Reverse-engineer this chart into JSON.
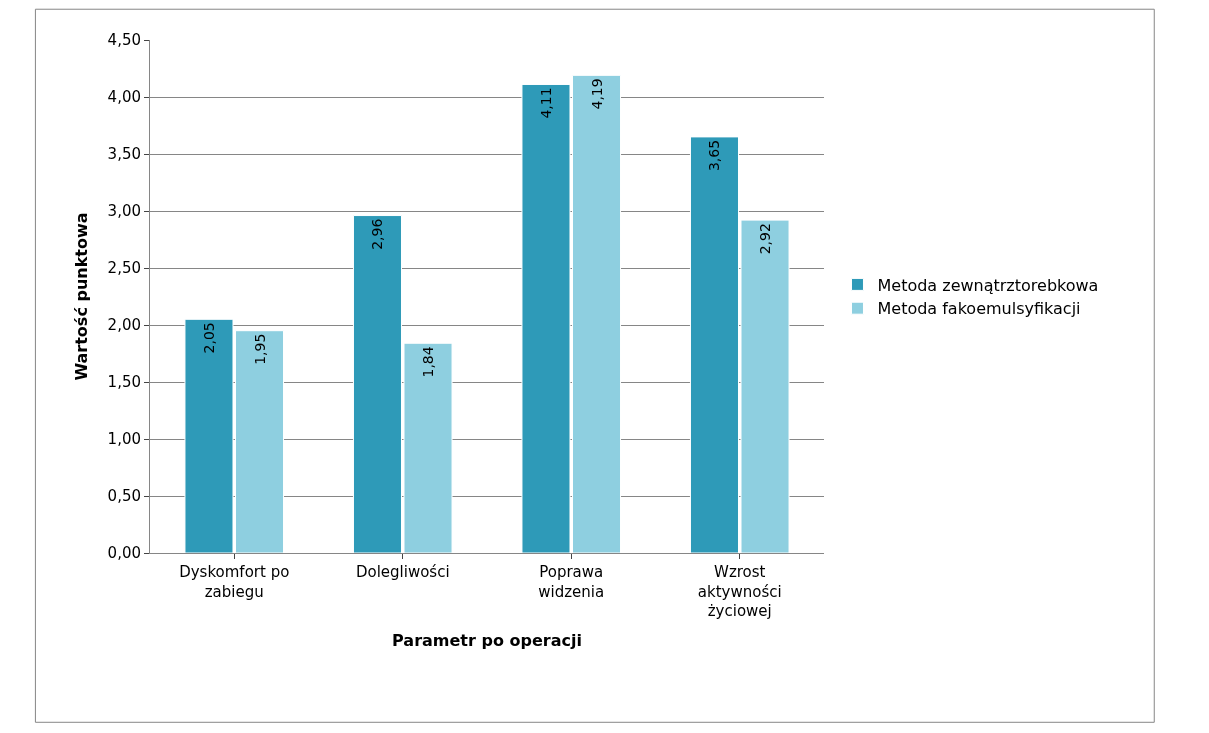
{
  "chart_data": {
    "type": "bar",
    "xlabel": "Parametr po operacji",
    "ylabel": "Wartość punktowa",
    "categories": [
      "Dyskomfort po zabiegu",
      "Dolegliwości",
      "Poprawa widzenia",
      "Wzrost aktywności życiowej"
    ],
    "series": [
      {
        "name": "Metoda zewnątrztorebkowa",
        "color": "#2e9ab8",
        "values": [
          2.05,
          2.96,
          4.11,
          3.65
        ],
        "value_labels": [
          "2,05",
          "2,96",
          "4,11",
          "3,65"
        ]
      },
      {
        "name": "Metoda fakoemulsyfikacji",
        "color": "#8ecfe0",
        "values": [
          1.95,
          1.84,
          4.19,
          2.92
        ],
        "value_labels": [
          "1,95",
          "1,84",
          "4,19",
          "2,92"
        ]
      }
    ],
    "ylim": [
      0,
      4.5
    ],
    "yticks": [
      {
        "value": 0,
        "label": "0,00"
      },
      {
        "value": 0.5,
        "label": "0,50"
      },
      {
        "value": 1,
        "label": "1,00"
      },
      {
        "value": 1.5,
        "label": "1,50"
      },
      {
        "value": 2,
        "label": "2,00"
      },
      {
        "value": 2.5,
        "label": "2,50"
      },
      {
        "value": 3,
        "label": "3,00"
      },
      {
        "value": 3.5,
        "label": "3,50"
      },
      {
        "value": 4,
        "label": "4,00"
      },
      {
        "value": 4.5,
        "label": "4,50"
      }
    ],
    "grid": "y",
    "legend": "right"
  }
}
